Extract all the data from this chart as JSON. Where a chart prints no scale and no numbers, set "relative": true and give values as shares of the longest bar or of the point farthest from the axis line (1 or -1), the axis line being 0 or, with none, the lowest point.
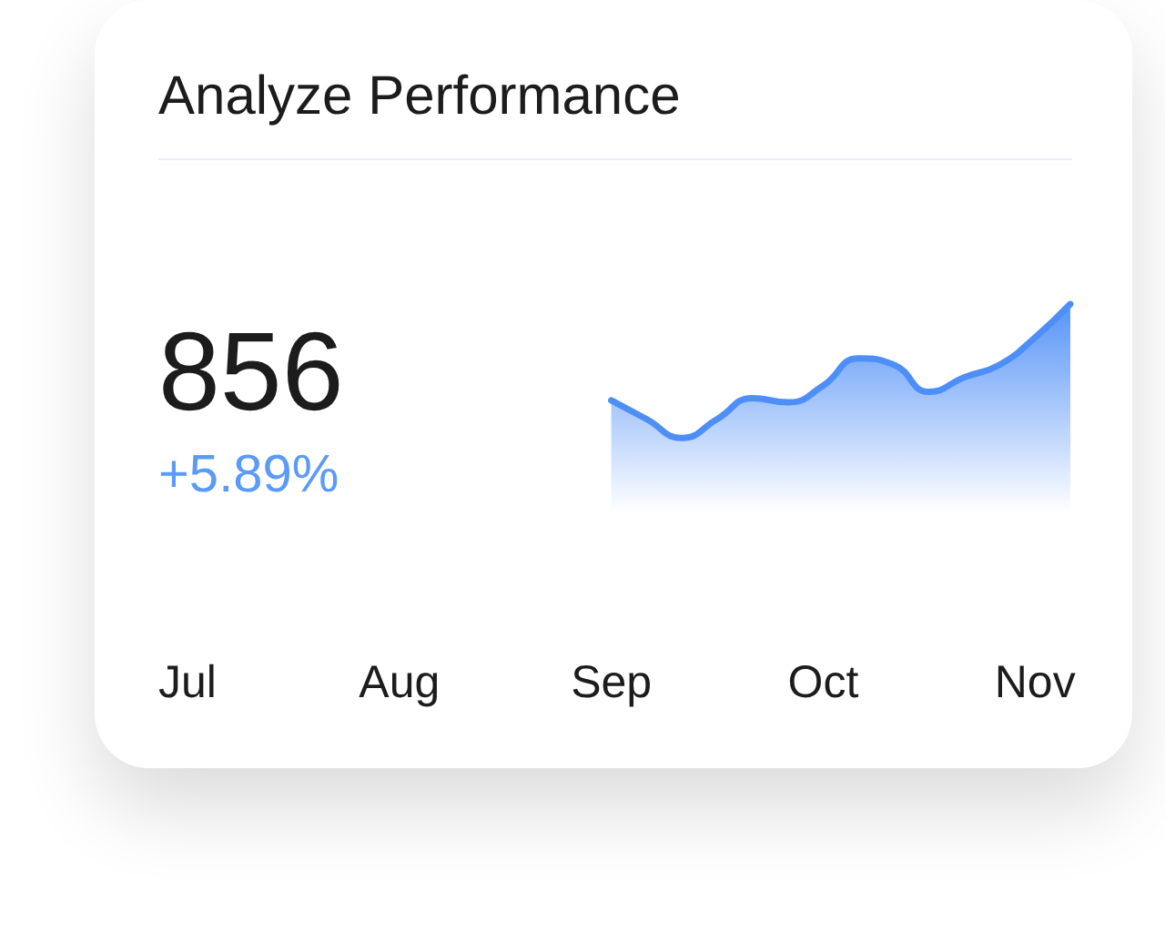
{
  "chart_data": {
    "type": "area",
    "title": "Analyze Performance",
    "annotations": [
      "856",
      "+5.89%"
    ],
    "categories": [
      "Jul",
      null,
      null,
      null,
      null,
      null,
      "Aug",
      null,
      null,
      null,
      null,
      null,
      "Sep",
      null,
      null,
      null,
      null,
      null,
      "Oct",
      null,
      null,
      null,
      null,
      null,
      "Nov",
      null
    ],
    "values": [
      null,
      null,
      null,
      null,
      null,
      null,
      null,
      null,
      null,
      null,
      null,
      null,
      0.54,
      0.45,
      0.36,
      0.45,
      0.55,
      0.53,
      0.61,
      0.74,
      0.71,
      0.58,
      0.65,
      0.71,
      0.84,
      1
    ],
    "color": "#4d8ef7",
    "relative": true,
    "marker": "none"
  }
}
